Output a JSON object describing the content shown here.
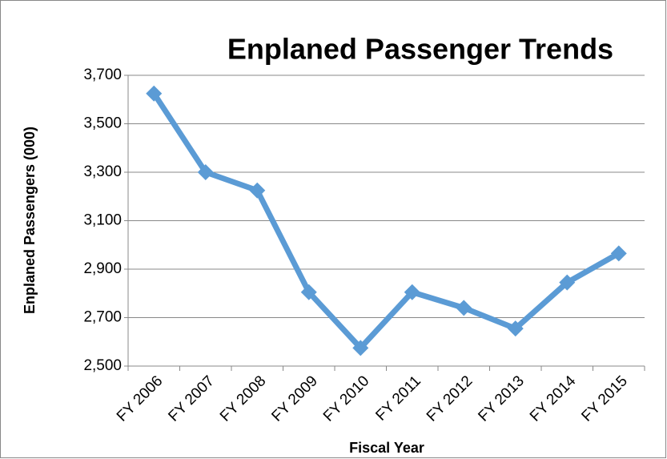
{
  "chart_data": {
    "type": "line",
    "title": "Enplaned Passenger Trends",
    "x_label": "Fiscal Year",
    "y_label": "Enplaned Passengers (000)",
    "categories": [
      "FY 2006",
      "FY 2007",
      "FY 2008",
      "FY 2009",
      "FY 2010",
      "FY 2011",
      "FY 2012",
      "FY 2013",
      "FY 2014",
      "FY 2015"
    ],
    "series": [
      {
        "name": "Enplaned Passengers",
        "color": "#5b9bd5",
        "values": [
          3625,
          3300,
          3225,
          2805,
          2575,
          2805,
          2740,
          2655,
          2845,
          2965
        ]
      }
    ],
    "ylim": [
      2500,
      3700
    ],
    "yticks": [
      {
        "value": 2500,
        "label": "2,500"
      },
      {
        "value": 2700,
        "label": "2,700"
      },
      {
        "value": 2900,
        "label": "2,900"
      },
      {
        "value": 3100,
        "label": "3,100"
      },
      {
        "value": 3300,
        "label": "3,300"
      },
      {
        "value": 3500,
        "label": "3,500"
      },
      {
        "value": 3700,
        "label": "3,700"
      }
    ],
    "grid": true
  }
}
